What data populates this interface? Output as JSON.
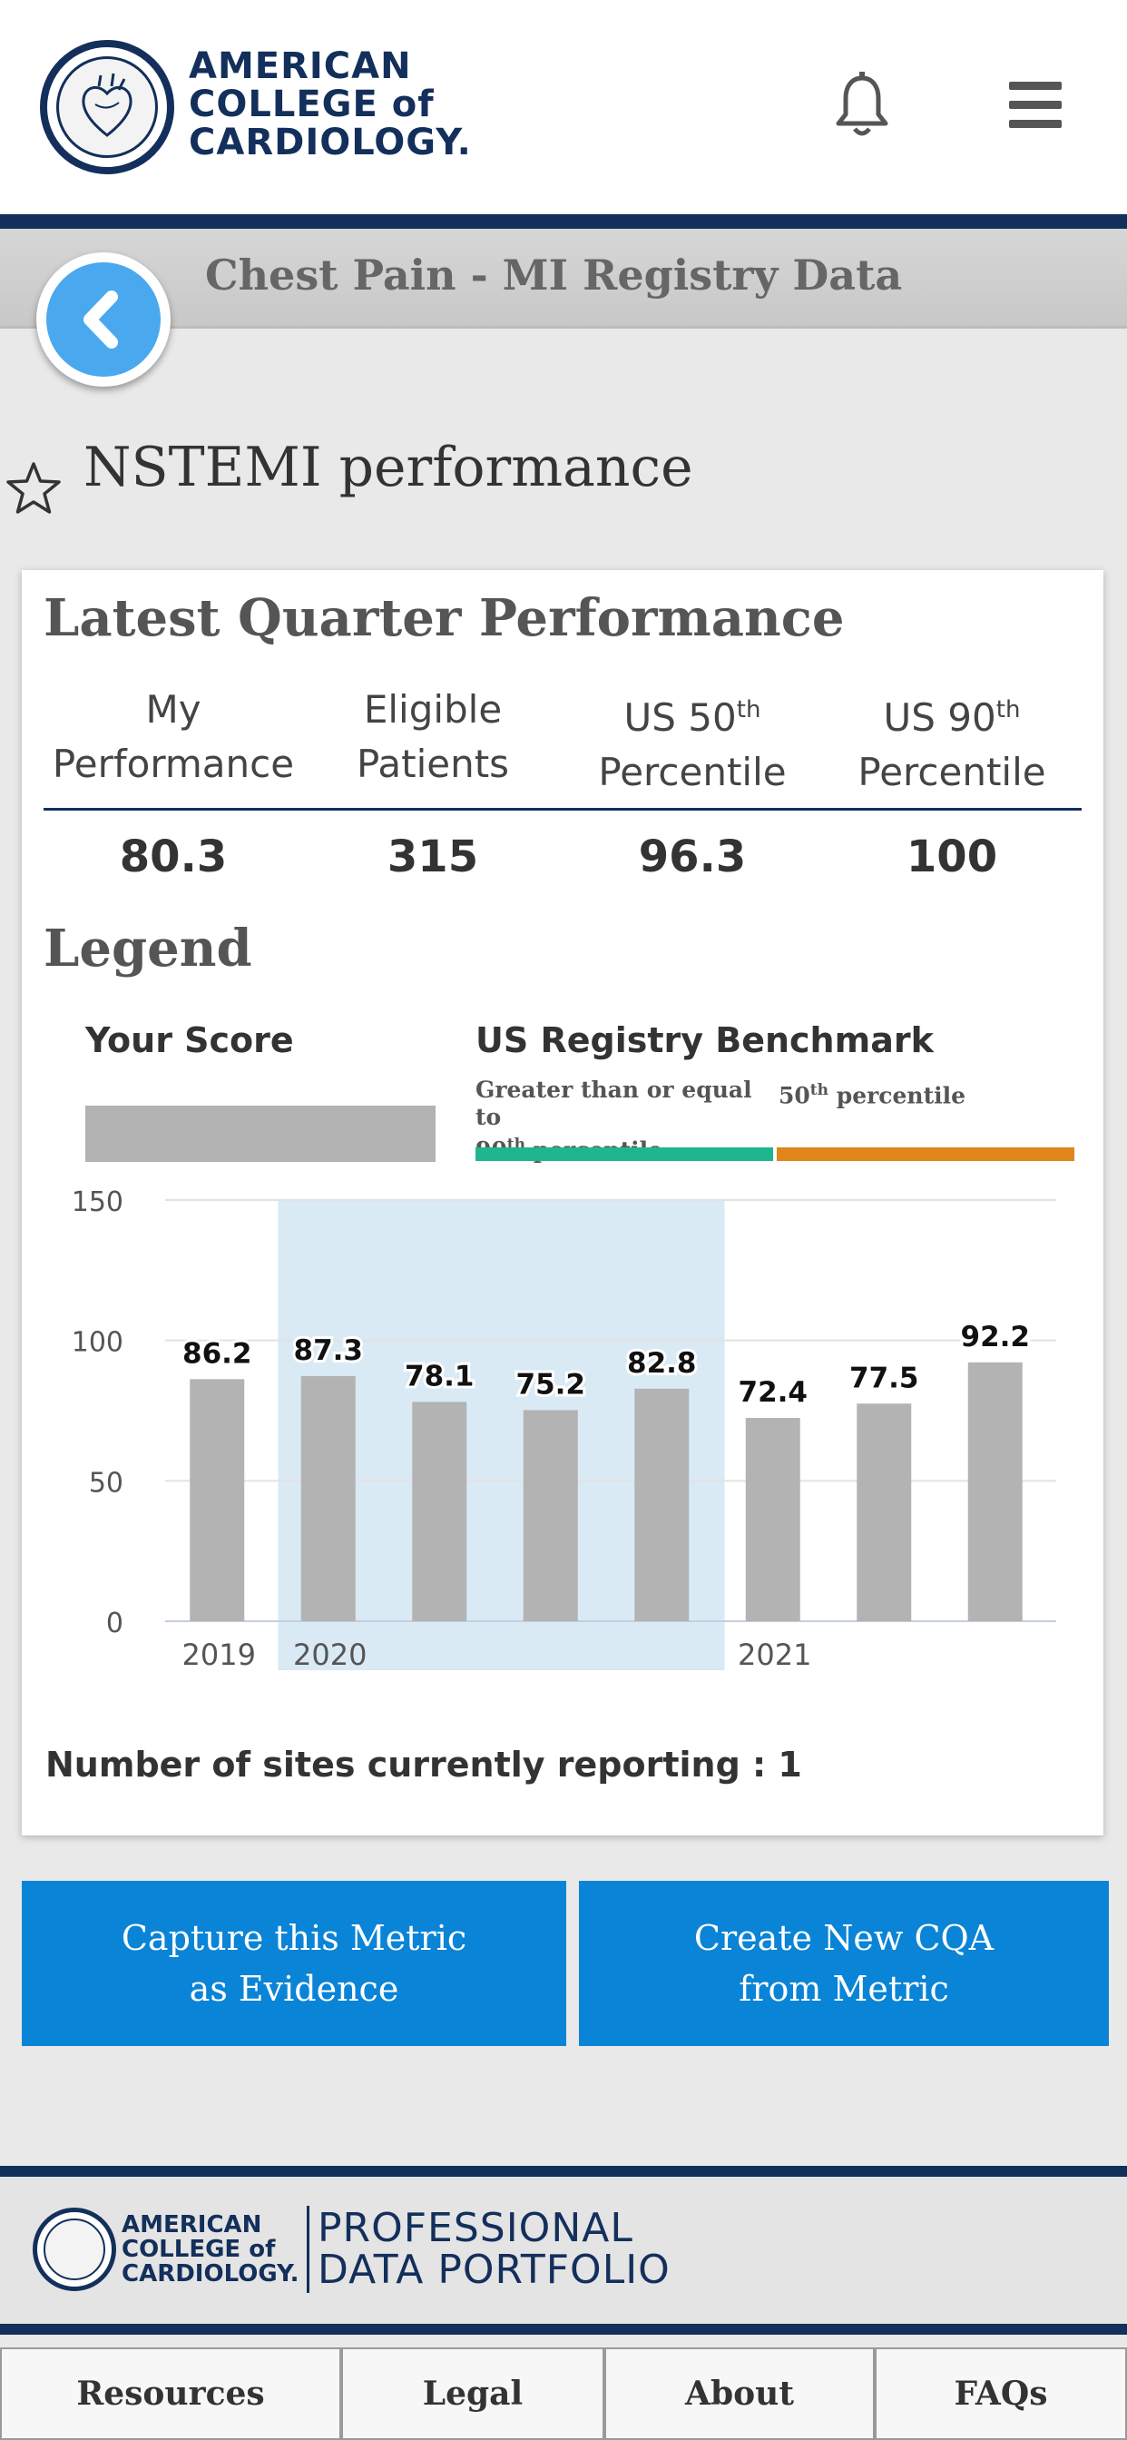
{
  "header": {
    "logo": [
      "AMERICAN",
      "COLLEGE of",
      "CARDIOLOGY."
    ],
    "bell_icon": "bell-icon",
    "menu_icon": "hamburger-menu-icon"
  },
  "subbar": {
    "title": "Chest Pain - MI Registry Data",
    "back_icon": "chevron-left-icon"
  },
  "page": {
    "title": "NSTEMI performance",
    "star_icon": "star-outline-icon"
  },
  "latest": {
    "title": "Latest Quarter Performance",
    "columns": [
      {
        "line1": "My",
        "line2": "Performance",
        "value": "80.3"
      },
      {
        "line1": "Eligible",
        "line2": "Patients",
        "value": "315"
      },
      {
        "line1": "US 50",
        "sup": "th",
        "line2": "Percentile",
        "value": "96.3"
      },
      {
        "line1": "US 90",
        "sup": "th",
        "line2": "Percentile",
        "value": "100"
      }
    ]
  },
  "legend": {
    "title": "Legend",
    "your_score": "Your Score",
    "benchmark": "US Registry Benchmark",
    "bench_90_line1": "Greater than or equal to",
    "bench_90_prefix": "90",
    "bench_90_sup": "th",
    "bench_90_suffix": " percentile",
    "bench_50_prefix": "50",
    "bench_50_sup": "th",
    "bench_50_suffix": " percentile",
    "colors": {
      "score": "#b3b3b3",
      "p90": "#1fb58f",
      "p50": "#e0861b",
      "highlight": "#d9eaf5"
    }
  },
  "chart_data": {
    "type": "bar",
    "values": [
      86.2,
      87.3,
      78.1,
      75.2,
      82.8,
      72.4,
      77.5,
      92.2
    ],
    "x_tick_labels": [
      "2019",
      "2020",
      "2021"
    ],
    "y_ticks": [
      "150",
      "100",
      "50",
      "0"
    ],
    "ylim": [
      0,
      150
    ],
    "highlighted_range": [
      1,
      4
    ]
  },
  "sites": "Number of sites currently reporting : 1",
  "actions": {
    "capture": [
      "Capture this Metric",
      "as Evidence"
    ],
    "create": [
      "Create New CQA",
      "from Metric"
    ]
  },
  "footer": {
    "acc": [
      "AMERICAN",
      "COLLEGE of",
      "CARDIOLOGY."
    ],
    "pdp": [
      "PROFESSIONAL",
      "DATA PORTFOLIO"
    ],
    "tabs": [
      "Resources",
      "Legal",
      "About",
      "FAQs"
    ]
  }
}
